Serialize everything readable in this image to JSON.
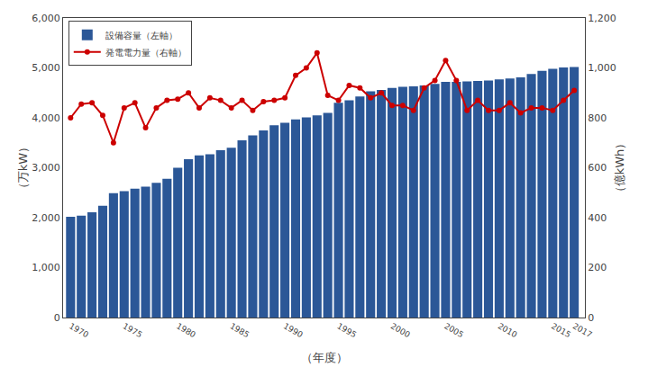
{
  "chart_data": {
    "type": "bar",
    "x": [
      1970,
      1971,
      1972,
      1973,
      1974,
      1975,
      1976,
      1977,
      1978,
      1979,
      1980,
      1981,
      1982,
      1983,
      1984,
      1985,
      1986,
      1987,
      1988,
      1989,
      1990,
      1991,
      1992,
      1993,
      1994,
      1995,
      1996,
      1997,
      1998,
      1999,
      2000,
      2001,
      2002,
      2003,
      2004,
      2005,
      2006,
      2007,
      2008,
      2009,
      2010,
      2011,
      2012,
      2013,
      2014,
      2015,
      2016,
      2017
    ],
    "series": [
      {
        "name": "設備容量（左軸）",
        "type": "bar",
        "color": "#2b5797",
        "values": [
          2020,
          2040,
          2110,
          2240,
          2490,
          2530,
          2580,
          2620,
          2700,
          2780,
          3000,
          3170,
          3250,
          3270,
          3350,
          3400,
          3550,
          3650,
          3750,
          3850,
          3900,
          3970,
          4010,
          4050,
          4100,
          4300,
          4350,
          4430,
          4530,
          4560,
          4600,
          4620,
          4630,
          4650,
          4680,
          4720,
          4720,
          4730,
          4740,
          4750,
          4770,
          4790,
          4810,
          4880,
          4940,
          4980,
          5010,
          5020
        ]
      },
      {
        "name": "発電電力量（右軸）",
        "type": "line",
        "color": "#cc0000",
        "marker": "circle",
        "axis": "y2",
        "values": [
          800,
          855,
          860,
          810,
          700,
          840,
          860,
          760,
          840,
          870,
          875,
          900,
          840,
          880,
          870,
          840,
          870,
          830,
          865,
          870,
          880,
          970,
          1000,
          1060,
          890,
          870,
          930,
          920,
          880,
          900,
          850,
          850,
          830,
          920,
          950,
          1030,
          950,
          830,
          870,
          830,
          830,
          860,
          820,
          840,
          840,
          830,
          870,
          910
        ]
      }
    ],
    "xlabel": "（年度）",
    "ylabel": "（万kW）",
    "y2label": "（億kWh）",
    "xlim": [
      1969.3,
      2018.0
    ],
    "xticks": [
      1970,
      1975,
      1980,
      1985,
      1990,
      1995,
      2000,
      2005,
      2010,
      2015,
      2017
    ],
    "ylim": [
      0,
      6000
    ],
    "yticks": [
      0,
      {
        "value": 1000,
        "label": "1,000"
      },
      {
        "value": 2000,
        "label": "2,000"
      },
      {
        "value": 3000,
        "label": "3,000"
      },
      {
        "value": 4000,
        "label": "4,000"
      },
      {
        "value": 5000,
        "label": "5,000"
      },
      {
        "value": 6000,
        "label": "6,000"
      }
    ],
    "y2lim": [
      0,
      1200
    ],
    "y2ticks": [
      0,
      200,
      400,
      600,
      800,
      {
        "value": 1000,
        "label": "1,000"
      },
      {
        "value": 1200,
        "label": "1,200"
      }
    ],
    "grid": false,
    "legend": "upper left"
  }
}
